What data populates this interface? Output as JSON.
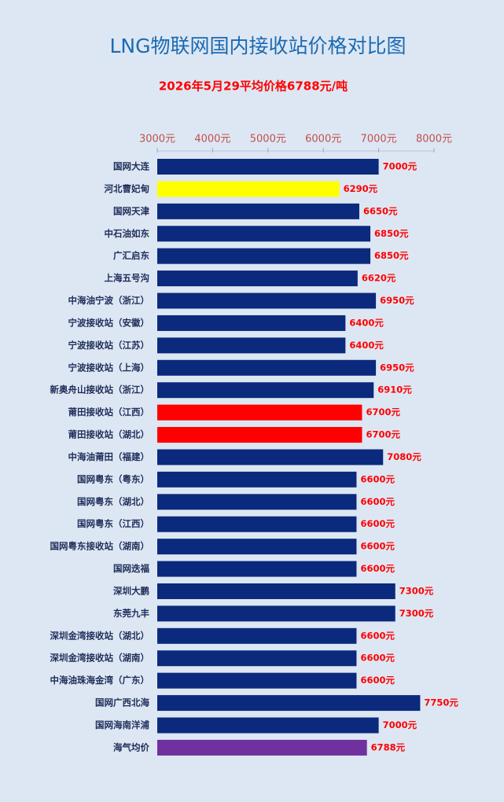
{
  "chart_data": {
    "type": "barh",
    "title": "LNG物联网国内接收站价格对比图",
    "subtitle": "2026年5月29平均价格6788元/吨",
    "categories": [
      "国网大连",
      "河北曹妃甸",
      "国网天津",
      "中石油如东",
      "广汇启东",
      "上海五号沟",
      "中海油宁波（浙江）",
      "宁波接收站（安徽）",
      "宁波接收站（江苏）",
      "宁波接收站（上海）",
      "新奥舟山接收站（浙江）",
      "莆田接收站（江西）",
      "莆田接收站（湖北）",
      "中海油莆田（福建）",
      "国网粤东（粤东）",
      "国网粤东（湖北）",
      "国网粤东（江西）",
      "国网粤东接收站（湖南）",
      "国网迭福",
      "深圳大鹏",
      "东莞九丰",
      "深圳金湾接收站（湖北）",
      "深圳金湾接收站（湖南）",
      "中海油珠海金湾（广东）",
      "国网广西北海",
      "国网海南洋浦",
      "海气均价"
    ],
    "values": [
      7000,
      6290,
      6650,
      6850,
      6850,
      6620,
      6950,
      6400,
      6400,
      6950,
      6910,
      6700,
      6700,
      7080,
      6600,
      6600,
      6600,
      6600,
      6600,
      7300,
      7300,
      6600,
      6600,
      6600,
      7750,
      7000,
      6788
    ],
    "value_labels": [
      "7000元",
      "6290元",
      "6650元",
      "6850元",
      "6850元",
      "6620元",
      "6950元",
      "6400元",
      "6400元",
      "6950元",
      "6910元",
      "6700元",
      "6700元",
      "7080元",
      "6600元",
      "6600元",
      "6600元",
      "6600元",
      "6600元",
      "7300元",
      "7300元",
      "6600元",
      "6600元",
      "6600元",
      "7750元",
      "7000元",
      "6788元"
    ],
    "colors": [
      "#0b2a7d",
      "#ffff00",
      "#0b2a7d",
      "#0b2a7d",
      "#0b2a7d",
      "#0b2a7d",
      "#0b2a7d",
      "#0b2a7d",
      "#0b2a7d",
      "#0b2a7d",
      "#0b2a7d",
      "#ff0000",
      "#ff0000",
      "#0b2a7d",
      "#0b2a7d",
      "#0b2a7d",
      "#0b2a7d",
      "#0b2a7d",
      "#0b2a7d",
      "#0b2a7d",
      "#0b2a7d",
      "#0b2a7d",
      "#0b2a7d",
      "#0b2a7d",
      "#0b2a7d",
      "#0b2a7d",
      "#7030a0"
    ],
    "xlim": [
      3000,
      8000
    ],
    "xticks": [
      {
        "value": 3000,
        "label": "3000元"
      },
      {
        "value": 4000,
        "label": "4000元"
      },
      {
        "value": 5000,
        "label": "5000元"
      },
      {
        "value": 6000,
        "label": "6000元"
      },
      {
        "value": 7000,
        "label": "7000元"
      },
      {
        "value": 8000,
        "label": "8000元"
      }
    ]
  }
}
